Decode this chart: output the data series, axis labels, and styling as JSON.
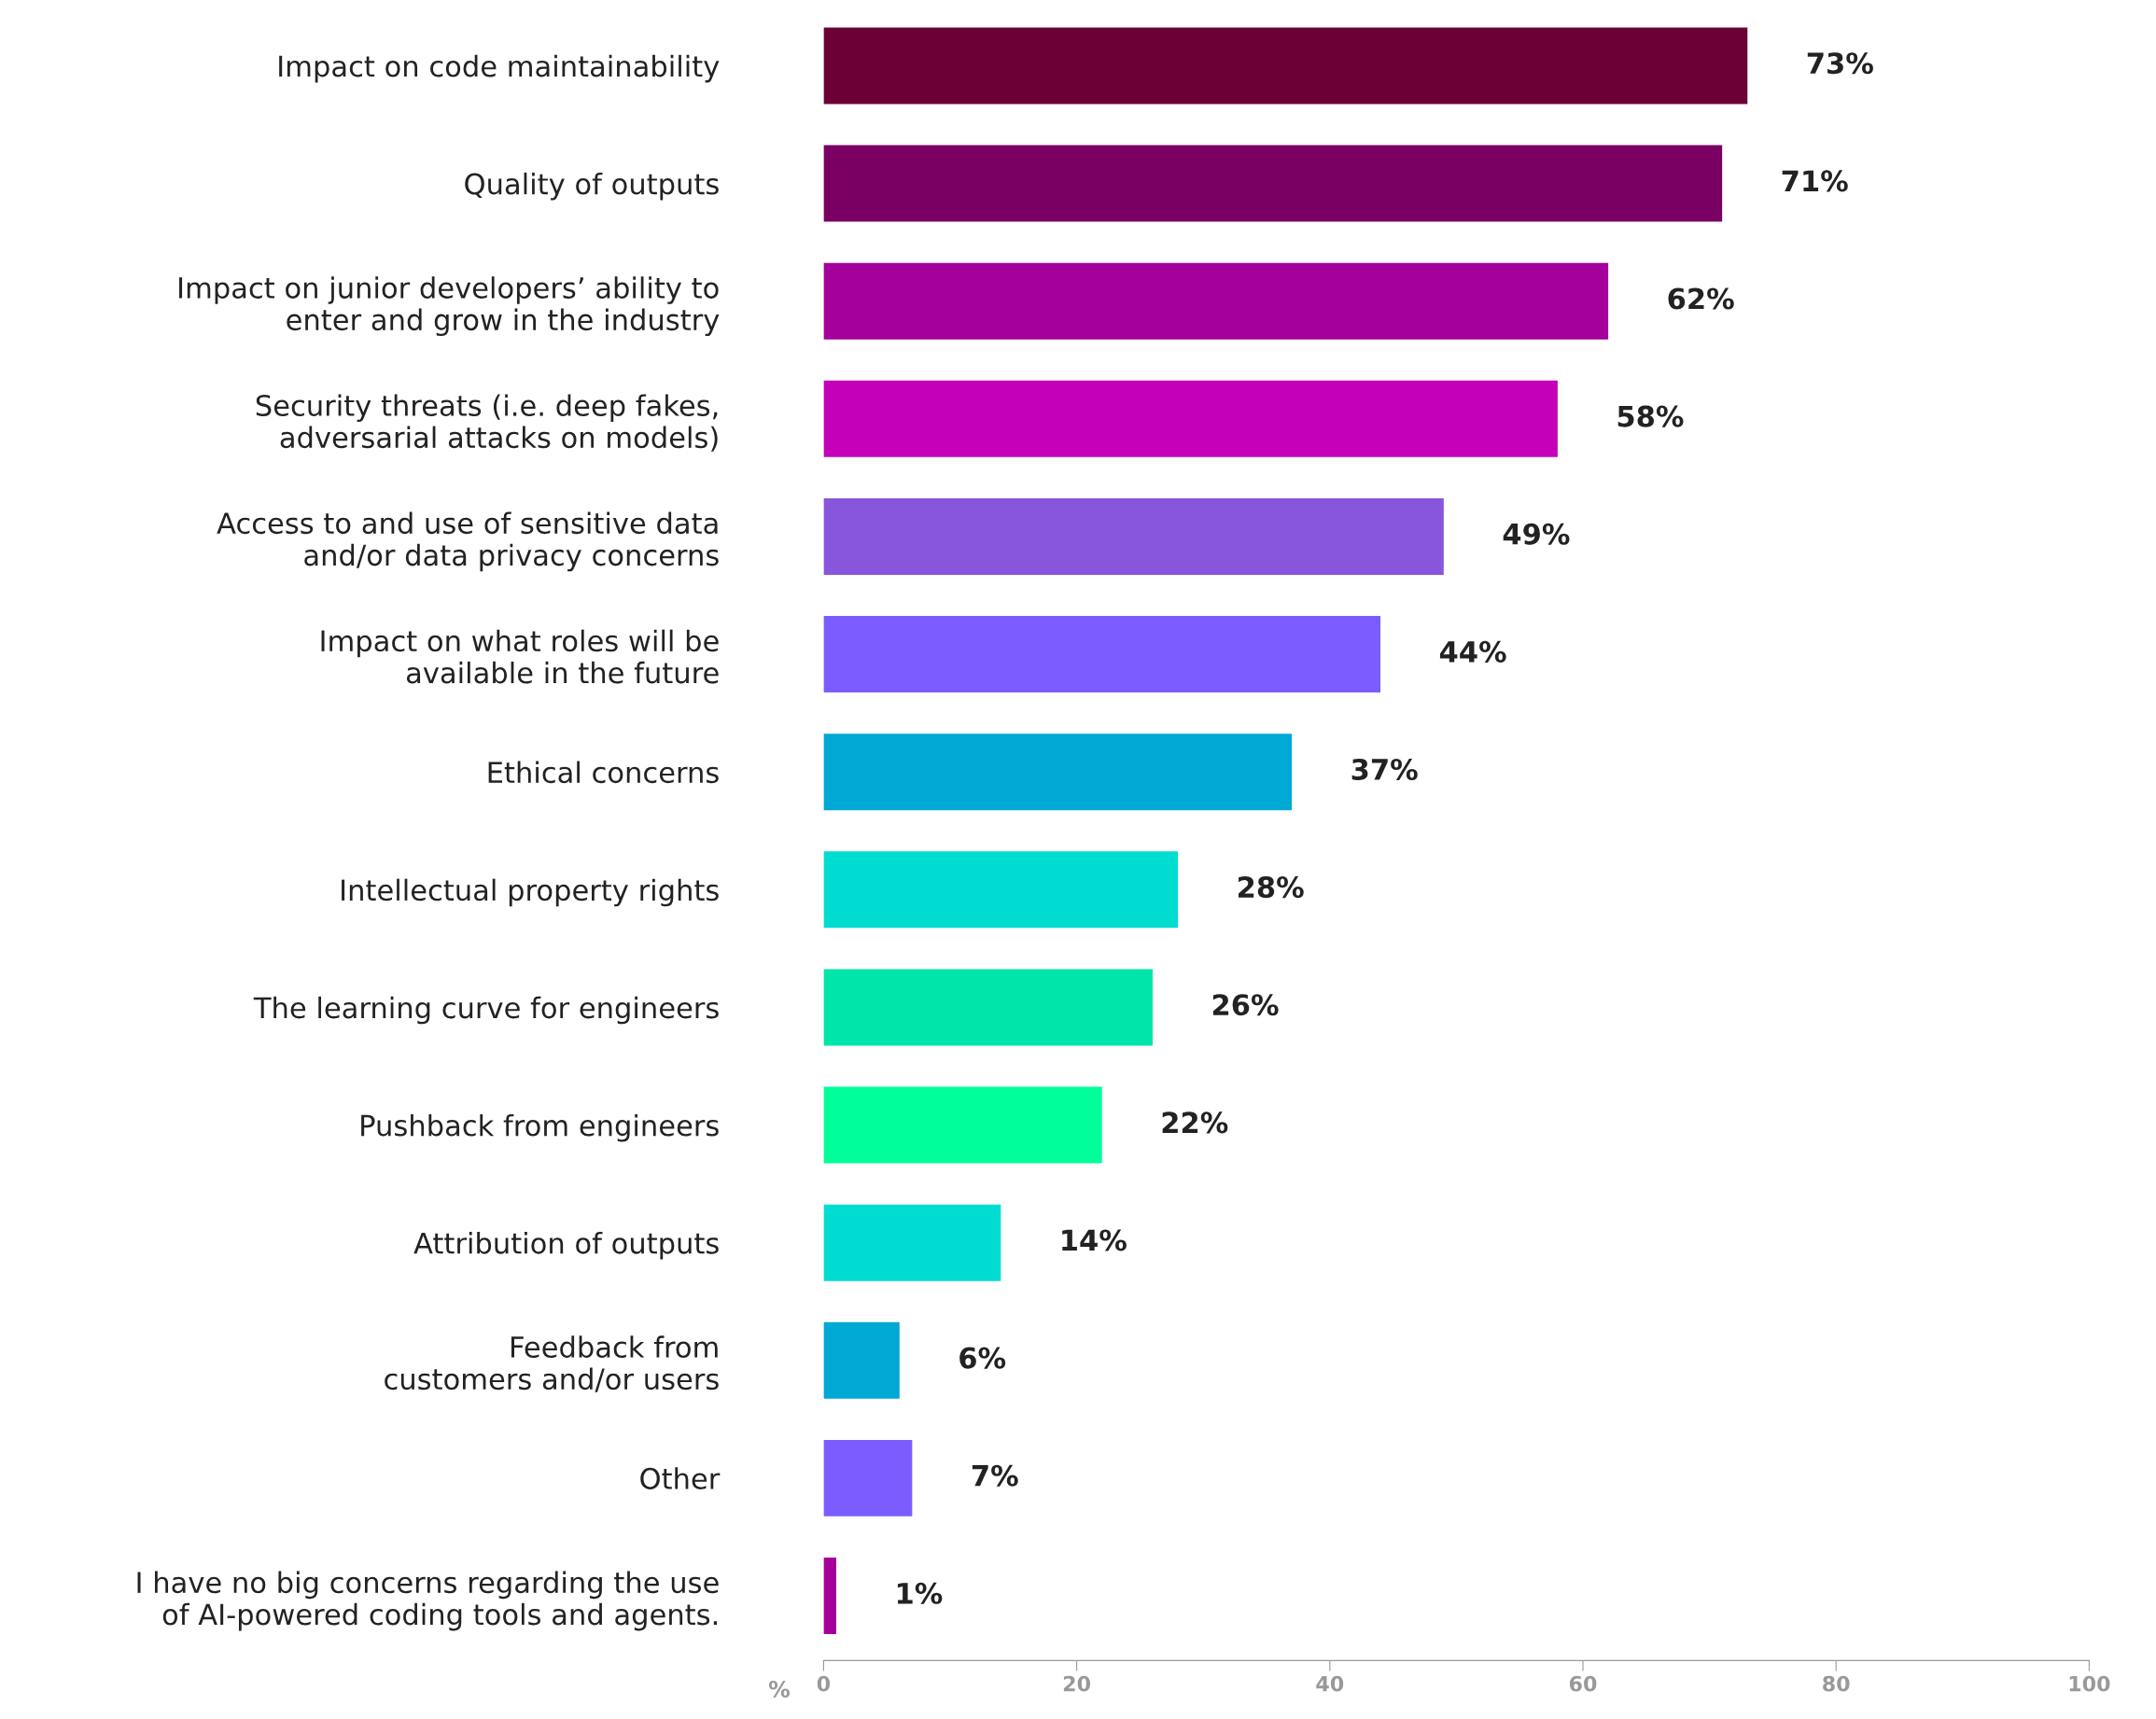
{
  "chart_data": {
    "type": "bar",
    "orientation": "horizontal",
    "categories": [
      "Impact on code maintainability",
      "Quality of outputs",
      "Impact on junior developers’ ability to\nenter and grow in the industry",
      "Security threats (i.e. deep fakes,\nadversarial attacks on models)",
      "Access to and use of sensitive data\nand/or data privacy concerns",
      "Impact on what roles will be\navailable in the future",
      "Ethical concerns",
      "Intellectual property rights",
      "The learning curve for engineers",
      "Pushback from engineers",
      "Attribution of outputs",
      "Feedback from\ncustomers and/or users",
      "Other",
      "I have no big concerns regarding the use\nof AI-powered coding tools and agents."
    ],
    "values": [
      73,
      71,
      62,
      58,
      49,
      44,
      37,
      28,
      26,
      22,
      14,
      6,
      7,
      1
    ],
    "colors": [
      "#6b0036",
      "#7a0063",
      "#a5009a",
      "#c400b8",
      "#8855dd",
      "#7a5cff",
      "#00a8d4",
      "#00ddd0",
      "#00e5aa",
      "#00ff99",
      "#00ddd0",
      "#00a8d4",
      "#7a5cff",
      "#a5009a"
    ],
    "value_labels": [
      "73%",
      "71%",
      "62%",
      "58%",
      "49%",
      "44%",
      "37%",
      "28%",
      "26%",
      "22%",
      "14%",
      "6%",
      "7%",
      "1%"
    ],
    "xlabel": "%",
    "xlim": [
      0,
      100
    ],
    "xticks": [
      0,
      20,
      40,
      60,
      80,
      100
    ],
    "grid": false,
    "legend": false
  }
}
